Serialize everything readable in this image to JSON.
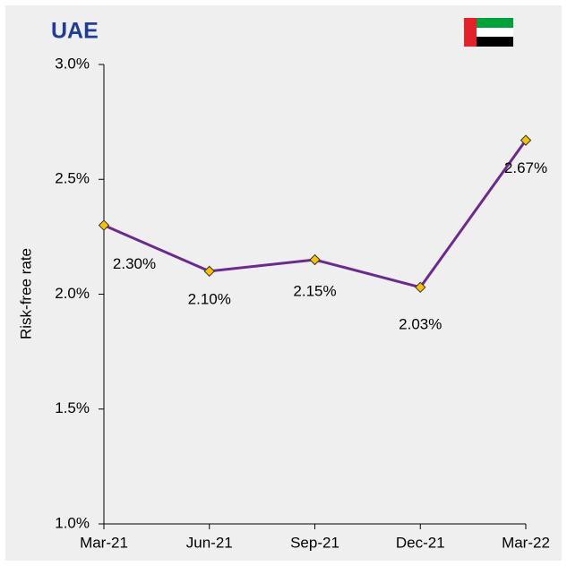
{
  "chart_data": {
    "type": "line",
    "title": "UAE",
    "ylabel": "Risk-free rate",
    "categories": [
      "Mar-21",
      "Jun-21",
      "Sep-21",
      "Dec-21",
      "Mar-22"
    ],
    "values": [
      2.3,
      2.1,
      2.15,
      2.03,
      2.67
    ],
    "value_labels": [
      "2.30%",
      "2.10%",
      "2.15%",
      "2.03%",
      "2.67%"
    ],
    "color": "#6a2a8e",
    "marker_color": "#f6c200",
    "ylim": [
      1.0,
      3.0
    ],
    "yticks": [
      {
        "value": 1.0,
        "label": "1.0%"
      },
      {
        "value": 1.5,
        "label": "1.5%"
      },
      {
        "value": 2.0,
        "label": "2.0%"
      },
      {
        "value": 2.5,
        "label": "2.5%"
      },
      {
        "value": 3.0,
        "label": "3.0%"
      }
    ],
    "grid": false
  }
}
